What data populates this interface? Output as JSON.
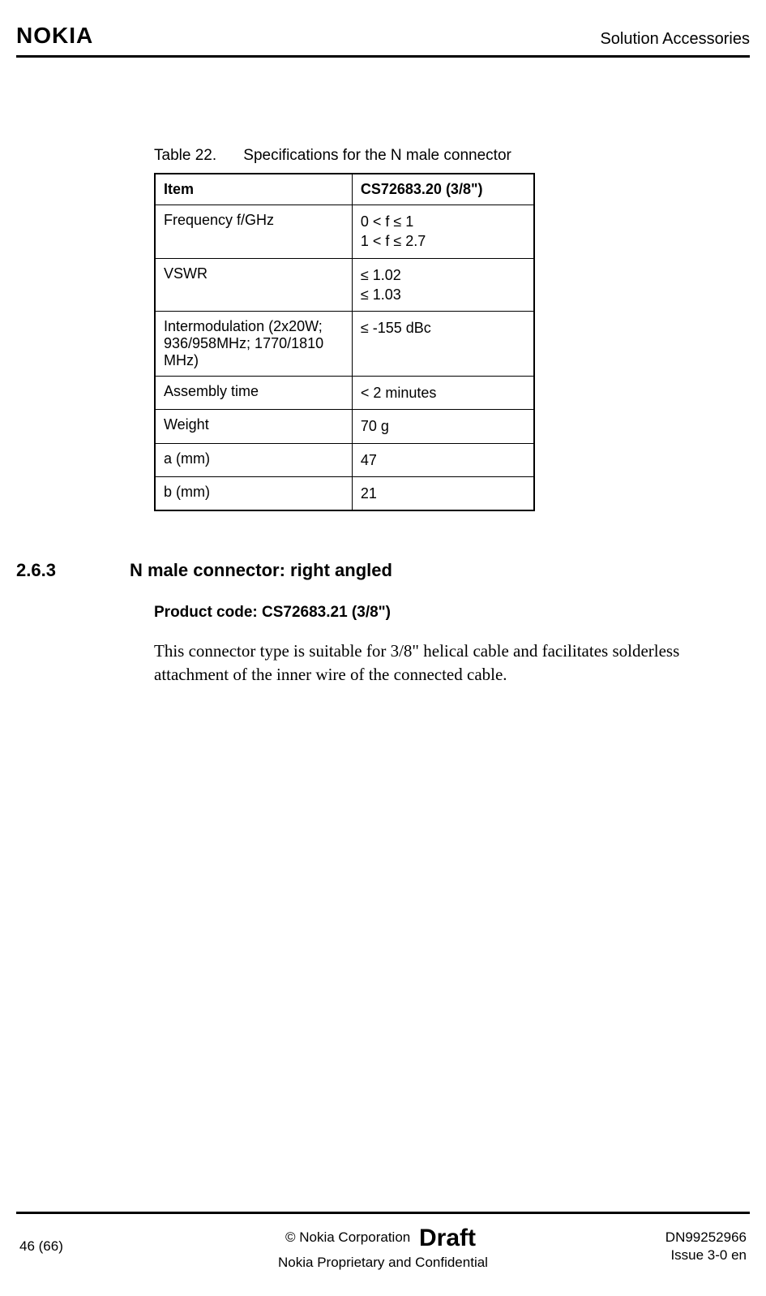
{
  "header": {
    "logo_text": "NOKIA",
    "right_text": "Solution Accessories"
  },
  "table": {
    "caption_num": "Table 22.",
    "caption_title": "Specifications for the N male connector",
    "head_item": "Item",
    "head_val": "CS72683.20 (3/8\")",
    "rows": [
      {
        "item": "Frequency f/GHz",
        "val_lines": [
          "0 < f ≤ 1",
          "1 < f ≤ 2.7"
        ]
      },
      {
        "item": "VSWR",
        "val_lines": [
          "≤ 1.02",
          "≤ 1.03"
        ]
      },
      {
        "item": "Intermodulation (2x20W; 936/958MHz; 1770/1810 MHz)",
        "val_lines": [
          "≤ -155 dBc"
        ]
      },
      {
        "item": "Assembly time",
        "val_lines": [
          "< 2 minutes"
        ]
      },
      {
        "item": "Weight",
        "val_lines": [
          "70 g"
        ]
      },
      {
        "item": "a (mm)",
        "val_lines": [
          "47"
        ]
      },
      {
        "item": "b (mm)",
        "val_lines": [
          "21"
        ]
      }
    ]
  },
  "section": {
    "number": "2.6.3",
    "title": "N male connector: right angled",
    "product_code": "Product code: CS72683.21 (3/8\")",
    "body": "This connector type is suitable for 3/8\" helical cable and facilitates solderless attachment of the inner wire of the connected cable."
  },
  "footer": {
    "page_num": "46 (66)",
    "copyright": "© Nokia Corporation",
    "draft": "Draft",
    "confidential": "Nokia Proprietary and Confidential",
    "docnum": "DN99252966",
    "issue": "Issue 3-0 en"
  }
}
